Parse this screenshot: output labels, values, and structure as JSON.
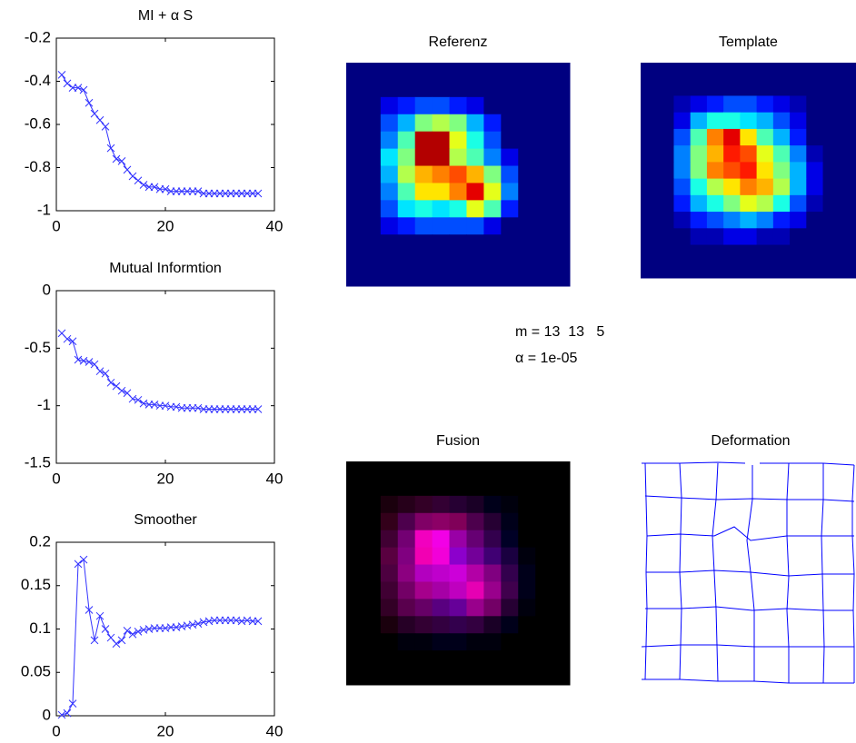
{
  "chart_data": [
    {
      "type": "line",
      "title": "MI + α S",
      "x": [
        1,
        2,
        3,
        4,
        5,
        6,
        7,
        8,
        9,
        10,
        11,
        12,
        13,
        14,
        15,
        16,
        17,
        18,
        19,
        20,
        21,
        22,
        23,
        24,
        25,
        26,
        27,
        28,
        29,
        30,
        31,
        32,
        33,
        34,
        35,
        36,
        37
      ],
      "series": [
        {
          "color": "#3333ff",
          "values": [
            -0.37,
            -0.41,
            -0.43,
            -0.43,
            -0.44,
            -0.5,
            -0.55,
            -0.58,
            -0.61,
            -0.71,
            -0.76,
            -0.77,
            -0.81,
            -0.84,
            -0.86,
            -0.88,
            -0.89,
            -0.89,
            -0.9,
            -0.9,
            -0.91,
            -0.91,
            -0.91,
            -0.91,
            -0.91,
            -0.91,
            -0.92,
            -0.92,
            -0.92,
            -0.92,
            -0.92,
            -0.92,
            -0.92,
            -0.92,
            -0.92,
            -0.92,
            -0.92
          ]
        }
      ],
      "marker": "x",
      "xlim": [
        0,
        40
      ],
      "xticks": [
        0,
        20,
        40
      ],
      "ylim": [
        -1,
        -0.2
      ],
      "yticks": [
        -1,
        -0.8,
        -0.6,
        -0.4,
        -0.2
      ]
    },
    {
      "type": "line",
      "title": "Mutual Informtion",
      "x": [
        1,
        2,
        3,
        4,
        5,
        6,
        7,
        8,
        9,
        10,
        11,
        12,
        13,
        14,
        15,
        16,
        17,
        18,
        19,
        20,
        21,
        22,
        23,
        24,
        25,
        26,
        27,
        28,
        29,
        30,
        31,
        32,
        33,
        34,
        35,
        36,
        37
      ],
      "series": [
        {
          "color": "#3333ff",
          "values": [
            -0.37,
            -0.42,
            -0.44,
            -0.6,
            -0.61,
            -0.62,
            -0.64,
            -0.7,
            -0.72,
            -0.8,
            -0.83,
            -0.87,
            -0.89,
            -0.94,
            -0.95,
            -0.98,
            -0.99,
            -0.99,
            -1,
            -1,
            -1.01,
            -1.01,
            -1.02,
            -1.02,
            -1.02,
            -1.02,
            -1.03,
            -1.03,
            -1.03,
            -1.03,
            -1.03,
            -1.03,
            -1.03,
            -1.03,
            -1.03,
            -1.03,
            -1.03
          ]
        }
      ],
      "marker": "x",
      "xlim": [
        0,
        40
      ],
      "xticks": [
        0,
        20,
        40
      ],
      "ylim": [
        -1.5,
        0
      ],
      "yticks": [
        -1.5,
        -1,
        -0.5,
        0
      ]
    },
    {
      "type": "line",
      "title": "Smoother",
      "x": [
        1,
        2,
        3,
        4,
        5,
        6,
        7,
        8,
        9,
        10,
        11,
        12,
        13,
        14,
        15,
        16,
        17,
        18,
        19,
        20,
        21,
        22,
        23,
        24,
        25,
        26,
        27,
        28,
        29,
        30,
        31,
        32,
        33,
        34,
        35,
        36,
        37
      ],
      "series": [
        {
          "color": "#3333ff",
          "values": [
            0.001,
            0.003,
            0.014,
            0.175,
            0.18,
            0.122,
            0.087,
            0.115,
            0.1,
            0.09,
            0.083,
            0.087,
            0.098,
            0.094,
            0.097,
            0.099,
            0.1,
            0.101,
            0.101,
            0.101,
            0.102,
            0.102,
            0.103,
            0.104,
            0.105,
            0.106,
            0.108,
            0.109,
            0.11,
            0.11,
            0.11,
            0.11,
            0.11,
            0.109,
            0.11,
            0.109,
            0.109
          ]
        }
      ],
      "marker": "x",
      "xlim": [
        0,
        40
      ],
      "xticks": [
        0,
        20,
        40
      ],
      "ylim": [
        0,
        0.2
      ],
      "yticks": [
        0,
        0.05,
        0.1,
        0.15,
        0.2
      ]
    },
    {
      "type": "heatmap",
      "title": "Referenz",
      "values": [
        [
          0,
          0,
          0,
          0,
          0,
          0,
          0,
          0,
          0,
          0,
          0,
          0,
          0
        ],
        [
          0,
          0,
          0,
          0,
          0,
          0,
          0,
          0,
          0,
          0,
          0,
          0,
          0
        ],
        [
          0,
          0,
          0.1,
          0.15,
          0.2,
          0.2,
          0.15,
          0.1,
          0,
          0,
          0,
          0,
          0
        ],
        [
          0,
          0,
          0.2,
          0.3,
          0.5,
          0.55,
          0.5,
          0.3,
          0.15,
          0,
          0,
          0,
          0
        ],
        [
          0,
          0,
          0.25,
          0.45,
          0.95,
          0.95,
          0.6,
          0.4,
          0.2,
          0,
          0,
          0,
          0
        ],
        [
          0,
          0,
          0.35,
          0.5,
          0.95,
          0.95,
          0.55,
          0.45,
          0.25,
          0.1,
          0,
          0,
          0
        ],
        [
          0,
          0,
          0.3,
          0.55,
          0.7,
          0.75,
          0.8,
          0.7,
          0.5,
          0.2,
          0,
          0,
          0
        ],
        [
          0,
          0,
          0.25,
          0.45,
          0.65,
          0.65,
          0.75,
          0.9,
          0.6,
          0.25,
          0,
          0,
          0
        ],
        [
          0,
          0,
          0.2,
          0.35,
          0.4,
          0.35,
          0.4,
          0.6,
          0.45,
          0.15,
          0,
          0,
          0
        ],
        [
          0,
          0,
          0.1,
          0.15,
          0.2,
          0.2,
          0.2,
          0.2,
          0.1,
          0,
          0,
          0,
          0
        ],
        [
          0,
          0,
          0,
          0,
          0,
          0,
          0,
          0,
          0,
          0,
          0,
          0,
          0
        ],
        [
          0,
          0,
          0,
          0,
          0,
          0,
          0,
          0,
          0,
          0,
          0,
          0,
          0
        ],
        [
          0,
          0,
          0,
          0,
          0,
          0,
          0,
          0,
          0,
          0,
          0,
          0,
          0
        ]
      ]
    },
    {
      "type": "heatmap",
      "title": "Template",
      "values": [
        [
          0,
          0,
          0,
          0,
          0,
          0,
          0,
          0,
          0,
          0,
          0,
          0,
          0
        ],
        [
          0,
          0,
          0,
          0,
          0,
          0,
          0,
          0,
          0,
          0,
          0,
          0,
          0
        ],
        [
          0,
          0,
          0.05,
          0.1,
          0.15,
          0.2,
          0.2,
          0.15,
          0.1,
          0.05,
          0,
          0,
          0
        ],
        [
          0,
          0,
          0.1,
          0.3,
          0.4,
          0.4,
          0.35,
          0.3,
          0.2,
          0.1,
          0,
          0,
          0
        ],
        [
          0,
          0,
          0.2,
          0.45,
          0.75,
          0.9,
          0.65,
          0.45,
          0.3,
          0.15,
          0,
          0,
          0
        ],
        [
          0,
          0,
          0.25,
          0.5,
          0.7,
          0.85,
          0.8,
          0.6,
          0.45,
          0.25,
          0.05,
          0,
          0
        ],
        [
          0,
          0,
          0.25,
          0.5,
          0.75,
          0.8,
          0.85,
          0.65,
          0.5,
          0.3,
          0.1,
          0,
          0
        ],
        [
          0,
          0,
          0.2,
          0.4,
          0.55,
          0.65,
          0.75,
          0.7,
          0.55,
          0.3,
          0.1,
          0,
          0
        ],
        [
          0,
          0,
          0.15,
          0.3,
          0.4,
          0.5,
          0.6,
          0.55,
          0.4,
          0.2,
          0.05,
          0,
          0
        ],
        [
          0,
          0,
          0.05,
          0.15,
          0.2,
          0.25,
          0.3,
          0.25,
          0.15,
          0.1,
          0,
          0,
          0
        ],
        [
          0,
          0,
          0,
          0.05,
          0.05,
          0.1,
          0.1,
          0.05,
          0.05,
          0,
          0,
          0,
          0
        ],
        [
          0,
          0,
          0,
          0,
          0,
          0,
          0,
          0,
          0,
          0,
          0,
          0,
          0
        ],
        [
          0,
          0,
          0,
          0,
          0,
          0,
          0,
          0,
          0,
          0,
          0,
          0,
          0
        ]
      ]
    },
    {
      "type": "fusion",
      "title": "Fusion"
    },
    {
      "type": "deformation",
      "title": "Deformation"
    }
  ],
  "annotations": [
    "m = 13  13   5",
    "α = 1e-05"
  ]
}
